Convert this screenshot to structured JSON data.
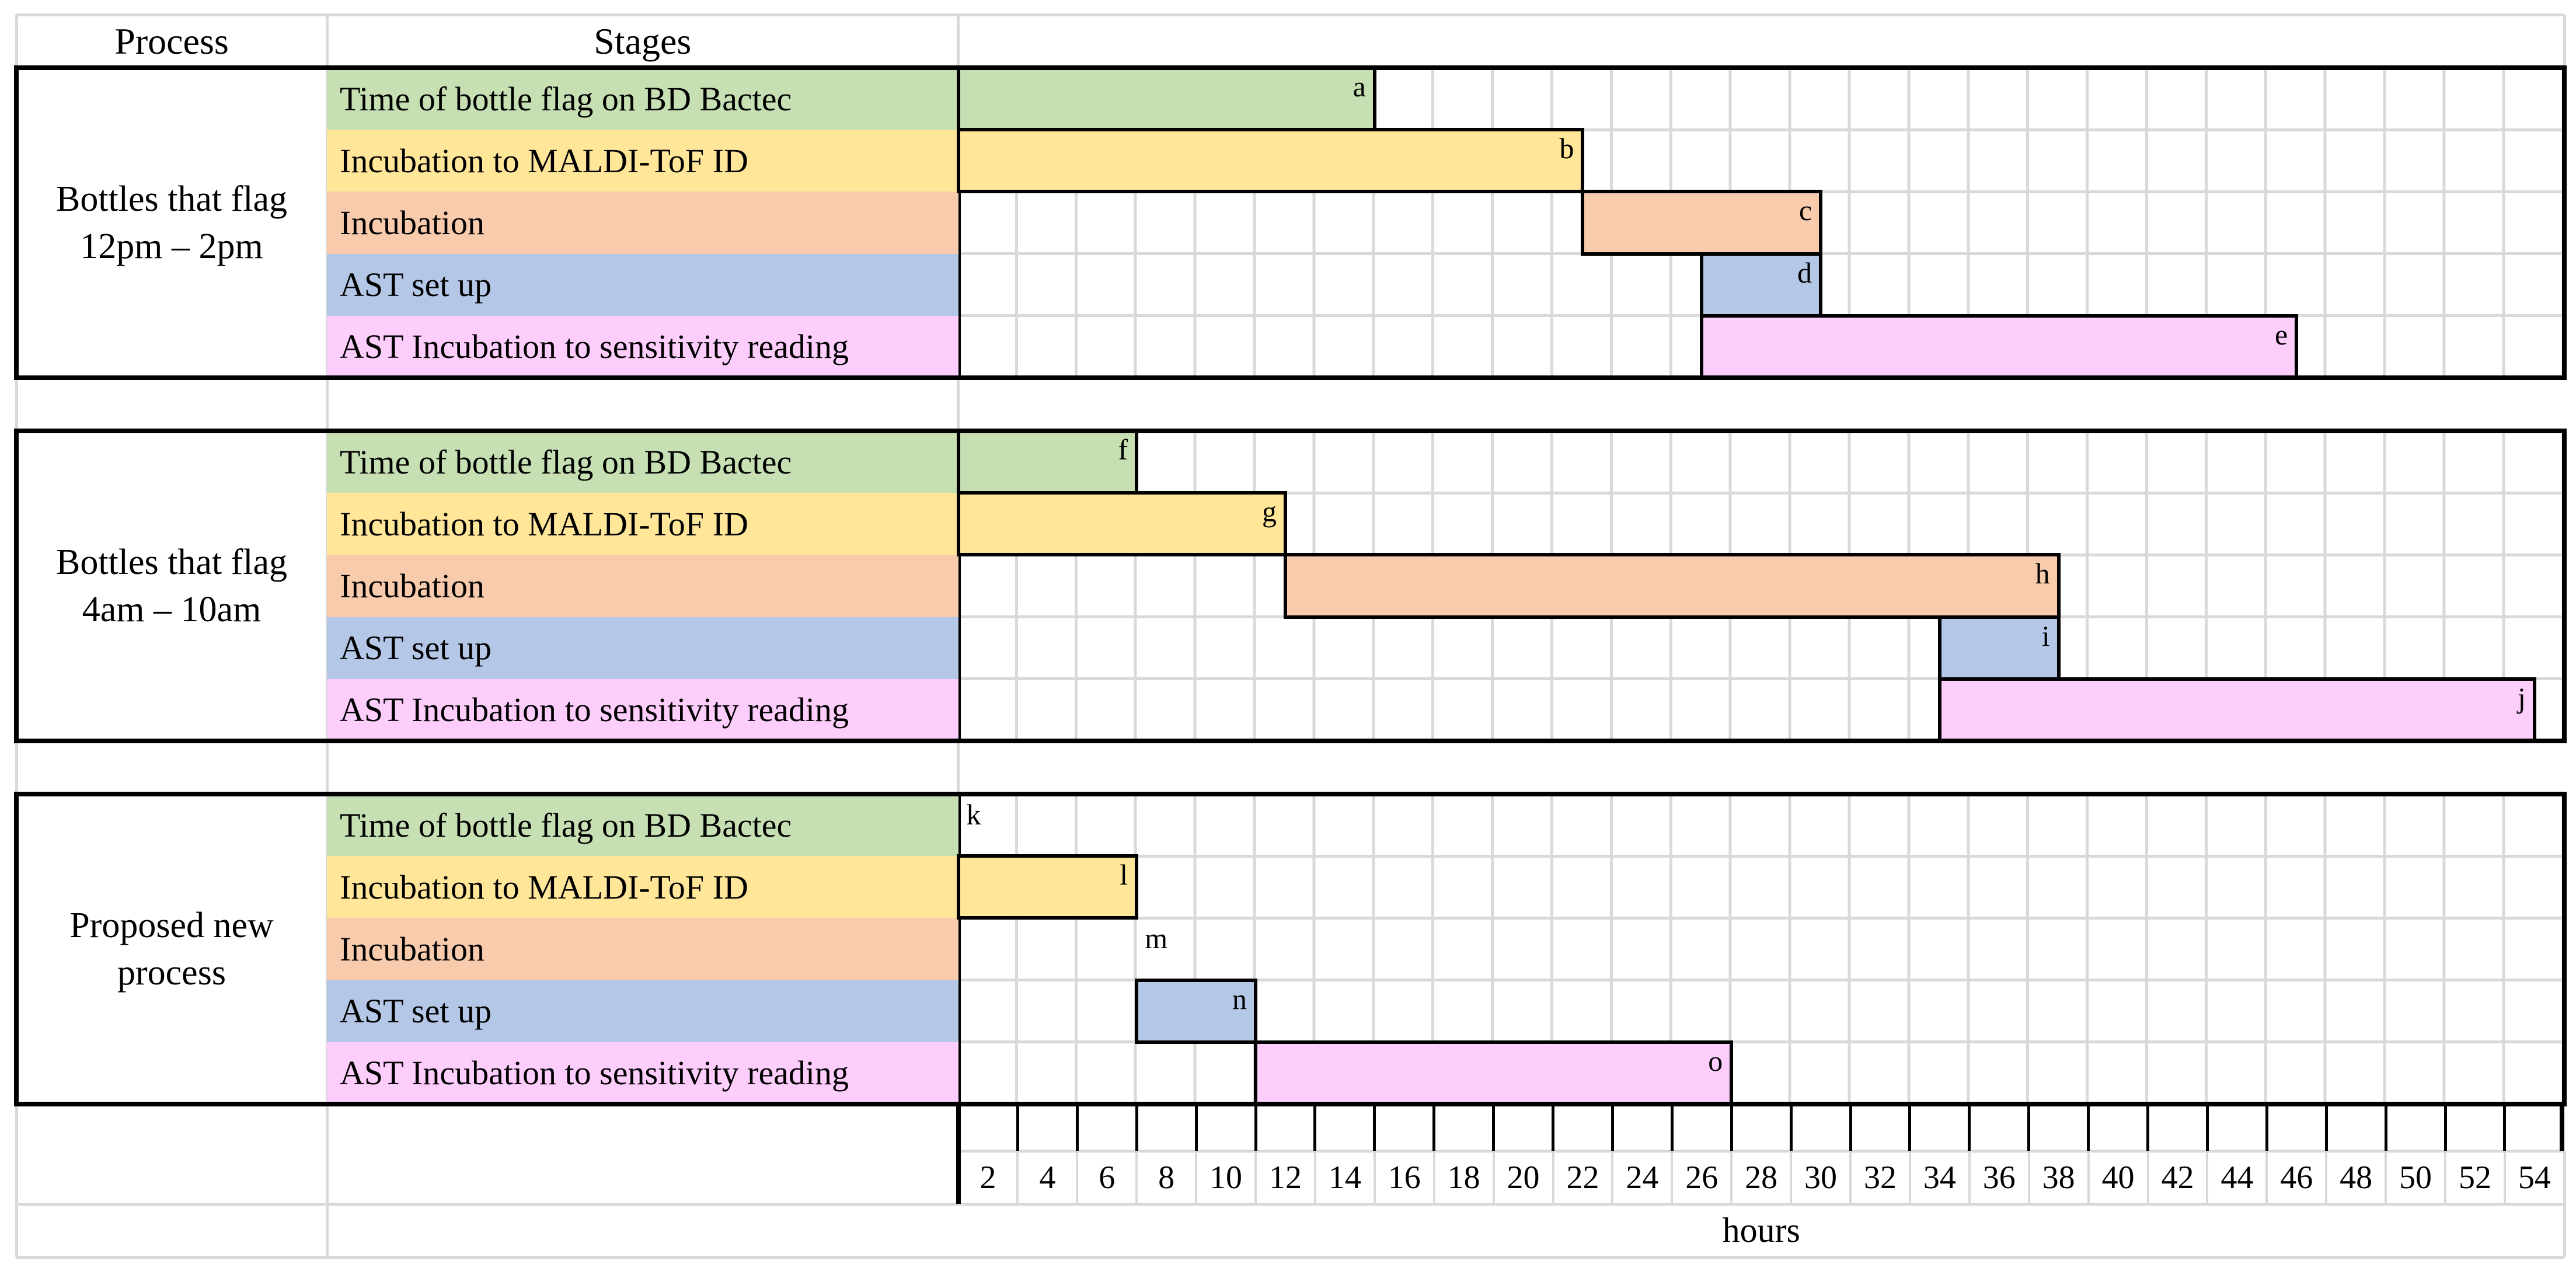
{
  "header": {
    "process_col": "Process",
    "stages_col": "Stages"
  },
  "axis": {
    "label": "hours",
    "min": 0,
    "max": 54,
    "tick_step": 2,
    "tick_labels": [
      2,
      4,
      6,
      8,
      10,
      12,
      14,
      16,
      18,
      20,
      22,
      24,
      26,
      28,
      30,
      32,
      34,
      36,
      38,
      40,
      42,
      44,
      46,
      48,
      50,
      52,
      54
    ]
  },
  "stages": [
    {
      "name": "Time of bottle flag on BD Bactec",
      "color": "#C6E0B4"
    },
    {
      "name": "Incubation to MALDI-ToF ID",
      "color": "#FFE699"
    },
    {
      "name": "Incubation",
      "color": "#F8CBAD"
    },
    {
      "name": "AST set up",
      "color": "#B4C7E7"
    },
    {
      "name": "AST Incubation to sensitivity reading",
      "color": "#FDCDFC"
    }
  ],
  "chart_data": {
    "type": "gantt",
    "xlabel": "hours",
    "xlim": [
      0,
      54
    ],
    "grid": true,
    "processes": [
      {
        "label_lines": [
          "Bottles that flag",
          "12pm – 2pm"
        ],
        "bars": [
          {
            "stage": "Time of bottle flag on BD Bactec",
            "letter": "a",
            "start_hour": 0,
            "end_hour": 14,
            "zero_duration": false
          },
          {
            "stage": "Incubation to MALDI-ToF ID",
            "letter": "b",
            "start_hour": 0,
            "end_hour": 21,
            "zero_duration": false
          },
          {
            "stage": "Incubation",
            "letter": "c",
            "start_hour": 21,
            "end_hour": 29,
            "zero_duration": false
          },
          {
            "stage": "AST set up",
            "letter": "d",
            "start_hour": 25,
            "end_hour": 29,
            "zero_duration": false
          },
          {
            "stage": "AST Incubation to sensitivity reading",
            "letter": "e",
            "start_hour": 25,
            "end_hour": 45,
            "zero_duration": false
          }
        ]
      },
      {
        "label_lines": [
          "Bottles that flag",
          "4am – 10am"
        ],
        "bars": [
          {
            "stage": "Time of bottle flag on BD Bactec",
            "letter": "f",
            "start_hour": 0,
            "end_hour": 6,
            "zero_duration": false
          },
          {
            "stage": "Incubation to MALDI-ToF ID",
            "letter": "g",
            "start_hour": 0,
            "end_hour": 11,
            "zero_duration": false
          },
          {
            "stage": "Incubation",
            "letter": "h",
            "start_hour": 11,
            "end_hour": 37,
            "zero_duration": false
          },
          {
            "stage": "AST set up",
            "letter": "i",
            "start_hour": 33,
            "end_hour": 37,
            "zero_duration": false
          },
          {
            "stage": "AST Incubation to sensitivity reading",
            "letter": "j",
            "start_hour": 33,
            "end_hour": 53,
            "zero_duration": false
          }
        ]
      },
      {
        "label_lines": [
          "Proposed new",
          "process"
        ],
        "bars": [
          {
            "stage": "Time of bottle flag on BD Bactec",
            "letter": "k",
            "start_hour": 0,
            "end_hour": 0,
            "zero_duration": true
          },
          {
            "stage": "Incubation to MALDI-ToF ID",
            "letter": "l",
            "start_hour": 0,
            "end_hour": 6,
            "zero_duration": false
          },
          {
            "stage": "Incubation",
            "letter": "m",
            "start_hour": 6,
            "end_hour": 6,
            "zero_duration": true
          },
          {
            "stage": "AST set up",
            "letter": "n",
            "start_hour": 6,
            "end_hour": 10,
            "zero_duration": false
          },
          {
            "stage": "AST Incubation to sensitivity reading",
            "letter": "o",
            "start_hour": 10,
            "end_hour": 26,
            "zero_duration": false
          }
        ]
      }
    ]
  },
  "style_colors": {
    "grid_line": "#D9D9D9",
    "border": "#000000",
    "background": "#FFFFFF"
  }
}
